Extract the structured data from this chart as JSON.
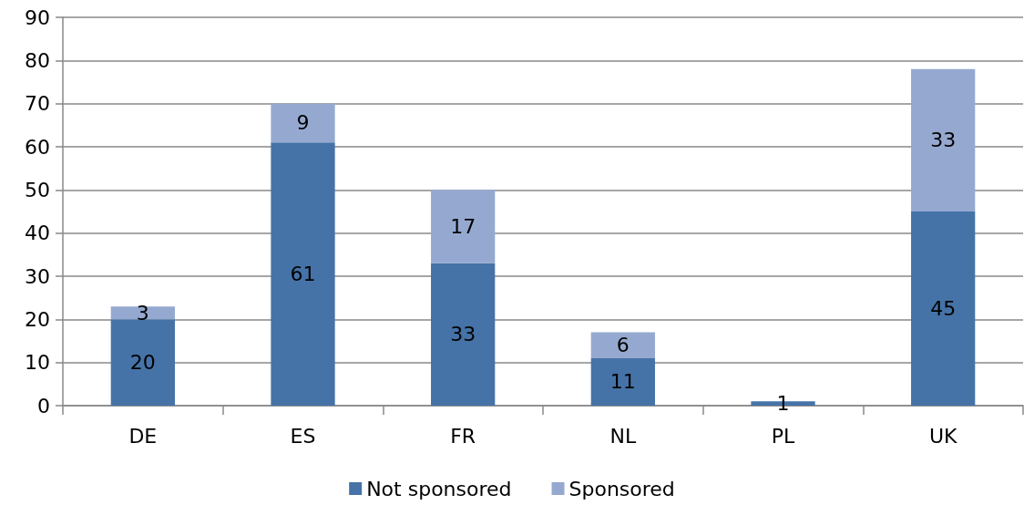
{
  "chart_data": {
    "type": "bar",
    "stacked": true,
    "categories": [
      "DE",
      "ES",
      "FR",
      "NL",
      "PL",
      "UK"
    ],
    "series": [
      {
        "name": "Not sponsored",
        "color": "#4573a7",
        "values": [
          20,
          61,
          33,
          11,
          1,
          45
        ]
      },
      {
        "name": "Sponsored",
        "color": "#95a9d0",
        "values": [
          3,
          9,
          17,
          6,
          null,
          33
        ]
      }
    ],
    "ylim": [
      0,
      90
    ],
    "yticks": [
      0,
      10,
      20,
      30,
      40,
      50,
      60,
      70,
      80,
      90
    ],
    "grid": "y",
    "legend": "bottom",
    "data_labels": true
  }
}
